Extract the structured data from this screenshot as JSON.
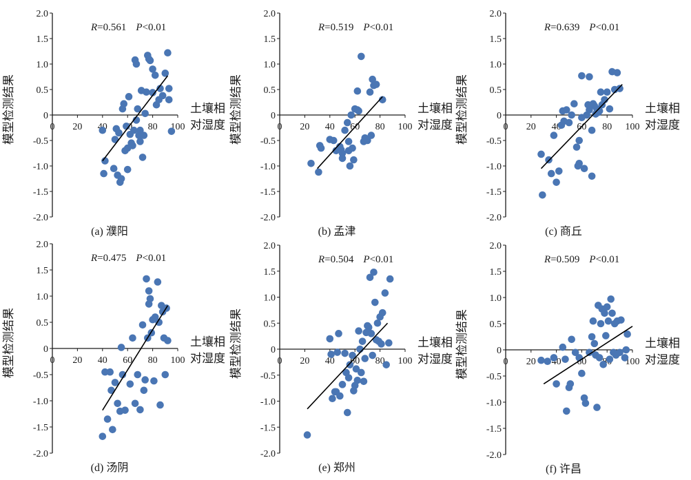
{
  "chart_data": [
    {
      "type": "scatter",
      "caption": "(a) 濮阳",
      "r_label": "R",
      "r_value": "=0.561",
      "p_label": "P",
      "p_value": "<0.01",
      "xlabel_line1": "土壤相",
      "xlabel_line2": "对湿度",
      "ylabel": "模型检测结果",
      "xlim": [
        0,
        100
      ],
      "ylim": [
        -2.0,
        2.0
      ],
      "xticks": [
        "0",
        "20",
        "40",
        "60",
        "80",
        "100"
      ],
      "yticks": [
        "-2.0",
        "-1.5",
        "-1.0",
        "-0.5",
        "0",
        "0.5",
        "1.0",
        "1.5",
        "2.0"
      ],
      "fit_line": {
        "x": [
          40,
          92
        ],
        "y": [
          -0.9,
          0.77
        ]
      },
      "points": [
        [
          40,
          -0.3
        ],
        [
          41,
          -1.15
        ],
        [
          42,
          -0.9
        ],
        [
          49,
          -1.05
        ],
        [
          50,
          -0.48
        ],
        [
          51,
          -0.27
        ],
        [
          52,
          -1.18
        ],
        [
          53,
          -0.35
        ],
        [
          54,
          -1.32
        ],
        [
          55,
          -1.25
        ],
        [
          56,
          0.12
        ],
        [
          57,
          0.22
        ],
        [
          58,
          -0.7
        ],
        [
          59,
          -0.22
        ],
        [
          60,
          -1.07
        ],
        [
          60,
          -0.65
        ],
        [
          61,
          0.36
        ],
        [
          62,
          -0.38
        ],
        [
          63,
          -0.55
        ],
        [
          64,
          -0.6
        ],
        [
          65,
          -0.3
        ],
        [
          66,
          1.08
        ],
        [
          67,
          1.0
        ],
        [
          67,
          -0.1
        ],
        [
          68,
          0.12
        ],
        [
          69,
          -0.4
        ],
        [
          70,
          -0.52
        ],
        [
          70,
          -0.3
        ],
        [
          71,
          0.48
        ],
        [
          72,
          -0.83
        ],
        [
          73,
          -0.4
        ],
        [
          74,
          0.03
        ],
        [
          75,
          0.45
        ],
        [
          76,
          1.17
        ],
        [
          77,
          1.1
        ],
        [
          78,
          1.07
        ],
        [
          80,
          0.44
        ],
        [
          80,
          0.9
        ],
        [
          82,
          0.78
        ],
        [
          83,
          0.2
        ],
        [
          85,
          0.3
        ],
        [
          86,
          0.52
        ],
        [
          88,
          0.38
        ],
        [
          90,
          0.82
        ],
        [
          92,
          1.22
        ],
        [
          93,
          0.52
        ],
        [
          93,
          0.3
        ],
        [
          95,
          -0.32
        ]
      ]
    },
    {
      "type": "scatter",
      "caption": "(b) 孟津",
      "r_label": "R",
      "r_value": "=0.519",
      "p_label": "P",
      "p_value": "<0.01",
      "xlabel_line1": "土壤相",
      "xlabel_line2": "对湿度",
      "ylabel": "模型检测结果",
      "xlim": [
        0,
        100
      ],
      "ylim": [
        -2.0,
        2.0
      ],
      "xticks": [
        "0",
        "20",
        "40",
        "60",
        "80",
        "100"
      ],
      "yticks": [
        "-2.0",
        "-1.5",
        "-1.0",
        "-0.5",
        "0",
        "0.5",
        "1.0",
        "1.5",
        "2.0"
      ],
      "fit_line": {
        "x": [
          30,
          82
        ],
        "y": [
          -1.05,
          0.36
        ]
      },
      "points": [
        [
          25,
          -0.95
        ],
        [
          31,
          -1.12
        ],
        [
          32,
          -0.6
        ],
        [
          33,
          -0.65
        ],
        [
          40,
          -0.48
        ],
        [
          43,
          -0.5
        ],
        [
          45,
          -0.7
        ],
        [
          48,
          -0.62
        ],
        [
          49,
          -0.68
        ],
        [
          50,
          -0.75
        ],
        [
          50,
          -0.85
        ],
        [
          52,
          -0.3
        ],
        [
          54,
          -0.15
        ],
        [
          55,
          -0.52
        ],
        [
          55,
          -0.7
        ],
        [
          56,
          -1.0
        ],
        [
          57,
          0.0
        ],
        [
          58,
          -0.65
        ],
        [
          59,
          -0.88
        ],
        [
          60,
          0.12
        ],
        [
          62,
          0.47
        ],
        [
          62,
          0.1
        ],
        [
          63,
          0.08
        ],
        [
          65,
          1.15
        ],
        [
          67,
          -0.52
        ],
        [
          68,
          -0.45
        ],
        [
          70,
          -0.5
        ],
        [
          72,
          0.45
        ],
        [
          73,
          -0.4
        ],
        [
          74,
          0.7
        ],
        [
          75,
          0.58
        ],
        [
          77,
          0.6
        ],
        [
          82,
          0.3
        ]
      ]
    },
    {
      "type": "scatter",
      "caption": "(c) 商丘",
      "r_label": "R",
      "r_value": "=0.639",
      "p_label": "P",
      "p_value": "<0.01",
      "xlabel_line1": "土壤相",
      "xlabel_line2": "对湿度",
      "ylabel": "模型检测结果",
      "xlim": [
        0,
        100
      ],
      "ylim": [
        -2.0,
        2.0
      ],
      "xticks": [
        "0",
        "20",
        "40",
        "60",
        "80",
        "100"
      ],
      "yticks": [
        "-2.0",
        "-1.5",
        "-1.0",
        "-0.5",
        "0",
        "0.5",
        "1.0",
        "1.5",
        "2.0"
      ],
      "fit_line": {
        "x": [
          28,
          92
        ],
        "y": [
          -1.05,
          0.6
        ]
      },
      "points": [
        [
          28,
          -0.77
        ],
        [
          29,
          -1.57
        ],
        [
          34,
          -0.88
        ],
        [
          36,
          -1.15
        ],
        [
          38,
          -0.4
        ],
        [
          40,
          -1.32
        ],
        [
          42,
          -1.1
        ],
        [
          44,
          -0.2
        ],
        [
          45,
          0.08
        ],
        [
          46,
          -0.12
        ],
        [
          48,
          0.1
        ],
        [
          50,
          -0.15
        ],
        [
          52,
          0.0
        ],
        [
          54,
          0.22
        ],
        [
          56,
          -0.63
        ],
        [
          57,
          -1.0
        ],
        [
          58,
          -0.5
        ],
        [
          58,
          -0.95
        ],
        [
          60,
          0.77
        ],
        [
          60,
          -0.05
        ],
        [
          62,
          -1.05
        ],
        [
          64,
          0.0
        ],
        [
          65,
          0.2
        ],
        [
          66,
          0.1
        ],
        [
          66,
          0.75
        ],
        [
          68,
          -0.3
        ],
        [
          68,
          -1.2
        ],
        [
          69,
          0.22
        ],
        [
          70,
          0.18
        ],
        [
          71,
          0.02
        ],
        [
          72,
          0.12
        ],
        [
          73,
          0.05
        ],
        [
          74,
          0.08
        ],
        [
          75,
          0.45
        ],
        [
          76,
          0.2
        ],
        [
          78,
          0.3
        ],
        [
          80,
          0.45
        ],
        [
          82,
          0.12
        ],
        [
          84,
          0.85
        ],
        [
          86,
          0.5
        ],
        [
          88,
          0.83
        ],
        [
          90,
          0.52
        ]
      ]
    },
    {
      "type": "scatter",
      "caption": "(d) 汤阴",
      "r_label": "R",
      "r_value": "=0.475",
      "p_label": "P",
      "p_value": "<0.01",
      "xlabel_line1": "土壤相",
      "xlabel_line2": "对湿度",
      "ylabel": "模型检测结果",
      "xlim": [
        0,
        100
      ],
      "ylim": [
        -2.0,
        2.0
      ],
      "xticks": [
        "0",
        "20",
        "40",
        "60",
        "80",
        "100"
      ],
      "yticks": [
        "-2.0",
        "-1.5",
        "-1.0",
        "-0.5",
        "0",
        "0.5",
        "1.0",
        "1.5",
        "2.0"
      ],
      "fit_line": {
        "x": [
          40,
          92
        ],
        "y": [
          -1.18,
          0.82
        ]
      },
      "points": [
        [
          40,
          -1.68
        ],
        [
          42,
          -0.45
        ],
        [
          44,
          -1.35
        ],
        [
          46,
          -0.45
        ],
        [
          47,
          -0.8
        ],
        [
          48,
          -1.55
        ],
        [
          50,
          -0.65
        ],
        [
          52,
          -1.05
        ],
        [
          54,
          -1.2
        ],
        [
          55,
          0.02
        ],
        [
          56,
          -0.5
        ],
        [
          58,
          -1.18
        ],
        [
          62,
          -0.68
        ],
        [
          64,
          0.2
        ],
        [
          66,
          -1.05
        ],
        [
          68,
          -0.5
        ],
        [
          70,
          -1.17
        ],
        [
          72,
          0.45
        ],
        [
          73,
          -0.8
        ],
        [
          74,
          -0.6
        ],
        [
          75,
          1.33
        ],
        [
          76,
          0.2
        ],
        [
          77,
          0.85
        ],
        [
          77,
          1.1
        ],
        [
          78,
          0.95
        ],
        [
          79,
          0.3
        ],
        [
          80,
          0.55
        ],
        [
          81,
          -0.62
        ],
        [
          82,
          0.6
        ],
        [
          84,
          1.27
        ],
        [
          85,
          0.5
        ],
        [
          86,
          -1.08
        ],
        [
          87,
          0.82
        ],
        [
          88,
          0.7
        ],
        [
          89,
          0.2
        ],
        [
          90,
          -0.5
        ],
        [
          91,
          0.77
        ],
        [
          92,
          0.15
        ]
      ]
    },
    {
      "type": "scatter",
      "caption": "(e) 郑州",
      "r_label": "R",
      "r_value": "=0.504",
      "p_label": "P",
      "p_value": "<0.01",
      "xlabel_line1": "土壤相",
      "xlabel_line2": "对湿度",
      "ylabel": "模型检测结果",
      "xlim": [
        0,
        100
      ],
      "ylim": [
        -2.0,
        2.0
      ],
      "xticks": [
        "0",
        "20",
        "40",
        "60",
        "80",
        "100"
      ],
      "yticks": [
        "-2.0",
        "-1.5",
        "-1.0",
        "-0.5",
        "0",
        "0.5",
        "1.0",
        "1.5",
        "2.0"
      ],
      "fit_line": {
        "x": [
          22,
          86
        ],
        "y": [
          -1.15,
          0.5
        ]
      },
      "points": [
        [
          22,
          -1.65
        ],
        [
          40,
          0.2
        ],
        [
          41,
          -0.1
        ],
        [
          42,
          -0.95
        ],
        [
          44,
          -0.82
        ],
        [
          45,
          -0.82
        ],
        [
          46,
          -0.06
        ],
        [
          47,
          0.3
        ],
        [
          48,
          -0.9
        ],
        [
          50,
          -0.68
        ],
        [
          52,
          -0.08
        ],
        [
          53,
          -0.45
        ],
        [
          54,
          -1.22
        ],
        [
          55,
          -0.55
        ],
        [
          56,
          -0.3
        ],
        [
          58,
          -0.12
        ],
        [
          59,
          -0.8
        ],
        [
          60,
          -0.7
        ],
        [
          61,
          -0.38
        ],
        [
          62,
          -0.6
        ],
        [
          63,
          0.35
        ],
        [
          64,
          0.0
        ],
        [
          65,
          -0.45
        ],
        [
          66,
          0.15
        ],
        [
          67,
          -0.62
        ],
        [
          68,
          -0.18
        ],
        [
          69,
          0.32
        ],
        [
          70,
          0.45
        ],
        [
          71,
          0.42
        ],
        [
          72,
          1.38
        ],
        [
          73,
          0.3
        ],
        [
          74,
          -0.12
        ],
        [
          75,
          1.48
        ],
        [
          76,
          0.9
        ],
        [
          77,
          0.18
        ],
        [
          78,
          0.5
        ],
        [
          79,
          0.15
        ],
        [
          80,
          0.62
        ],
        [
          81,
          0.1
        ],
        [
          82,
          0.7
        ],
        [
          84,
          1.08
        ],
        [
          85,
          -0.3
        ],
        [
          87,
          0.12
        ],
        [
          88,
          1.35
        ]
      ]
    },
    {
      "type": "scatter",
      "caption": "(f) 许昌",
      "r_label": "R",
      "r_value": "=0.509",
      "p_label": "P",
      "p_value": "<0.01",
      "xlabel_line1": "土壤相",
      "xlabel_line2": "对湿度",
      "ylabel": "模型检测结果",
      "xlim": [
        0,
        100
      ],
      "ylim": [
        -2.0,
        2.0
      ],
      "xticks": [
        "0",
        "20",
        "40",
        "60",
        "80",
        "100"
      ],
      "yticks": [
        "-2.0",
        "-1.5",
        "-1.0",
        "-0.5",
        "0",
        "0.5",
        "1.0",
        "1.5",
        "2.0"
      ],
      "fit_line": {
        "x": [
          30,
          100
        ],
        "y": [
          -0.65,
          0.45
        ]
      },
      "points": [
        [
          28,
          -0.2
        ],
        [
          33,
          -0.22
        ],
        [
          38,
          -0.15
        ],
        [
          40,
          -0.65
        ],
        [
          45,
          0.05
        ],
        [
          47,
          -0.18
        ],
        [
          48,
          -1.17
        ],
        [
          50,
          -0.72
        ],
        [
          51,
          -0.65
        ],
        [
          52,
          0.2
        ],
        [
          55,
          -0.05
        ],
        [
          58,
          -0.15
        ],
        [
          60,
          -0.45
        ],
        [
          62,
          -0.92
        ],
        [
          63,
          -1.02
        ],
        [
          66,
          -0.05
        ],
        [
          68,
          0.25
        ],
        [
          69,
          0.55
        ],
        [
          70,
          0.12
        ],
        [
          71,
          -0.1
        ],
        [
          72,
          -1.1
        ],
        [
          73,
          0.85
        ],
        [
          74,
          -0.15
        ],
        [
          75,
          0.5
        ],
        [
          76,
          0.78
        ],
        [
          77,
          -0.28
        ],
        [
          78,
          0.7
        ],
        [
          79,
          0.27
        ],
        [
          80,
          0.82
        ],
        [
          81,
          0.55
        ],
        [
          82,
          -0.18
        ],
        [
          83,
          0.97
        ],
        [
          84,
          0.7
        ],
        [
          85,
          -0.05
        ],
        [
          86,
          0.5
        ],
        [
          87,
          -0.1
        ],
        [
          88,
          0.55
        ],
        [
          90,
          -0.05
        ],
        [
          91,
          0.57
        ],
        [
          94,
          -0.15
        ],
        [
          95,
          0.0
        ],
        [
          96,
          0.3
        ]
      ]
    }
  ],
  "style": {
    "marker_color": "#4a76b4",
    "line_color": "#000000",
    "axis_color": "#1a1a1a"
  }
}
